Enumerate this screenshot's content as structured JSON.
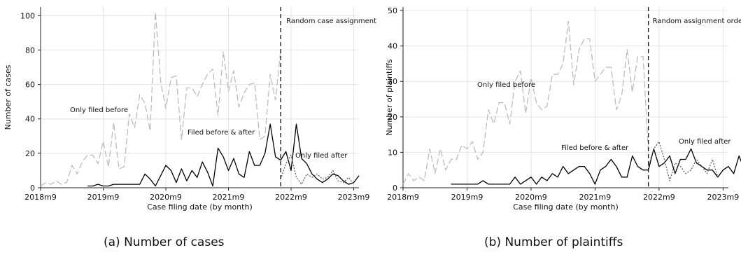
{
  "chart_data": [
    {
      "type": "line",
      "caption": "(a) Number of cases",
      "xlabel": "Case filing date (by month)",
      "ylabel": "Number of cases",
      "x_tick_labels": [
        "2018m9",
        "2019m9",
        "2020m9",
        "2021m9",
        "2022m9",
        "2023m9"
      ],
      "x_tick_months": [
        0,
        12,
        24,
        36,
        48,
        60
      ],
      "xlim": [
        0,
        61
      ],
      "ylim": [
        0,
        105
      ],
      "yticks": [
        0,
        20,
        40,
        60,
        80,
        100
      ],
      "vline": {
        "month": 46,
        "label": "Random case assignment"
      },
      "series": [
        {
          "name": "Only filed before",
          "style": "longdash",
          "color": "#b8b8b8",
          "x_start": 0,
          "values": [
            1,
            3,
            2,
            4,
            2,
            3,
            13,
            8,
            15,
            19,
            19,
            14,
            27,
            12,
            38,
            11,
            12,
            43,
            35,
            54,
            49,
            33,
            102,
            62,
            46,
            64,
            65,
            28,
            58,
            58,
            53,
            60,
            66,
            69,
            42,
            79,
            56,
            68,
            47,
            55,
            60,
            61,
            28,
            30,
            66,
            51,
            80
          ]
        },
        {
          "name": "Filed before & after",
          "style": "solid",
          "color": "#000000",
          "x_start": 9,
          "values": [
            1,
            1,
            2,
            1,
            1,
            2,
            2,
            2,
            2,
            2,
            2,
            8,
            5,
            1,
            7,
            13,
            10,
            3,
            11,
            4,
            10,
            6,
            15,
            9,
            1,
            23,
            18,
            10,
            17,
            8,
            6,
            21,
            13,
            13,
            20,
            37,
            18,
            16,
            21,
            10,
            37,
            17,
            14,
            8,
            5,
            3,
            5,
            8,
            7,
            4,
            2,
            3,
            7
          ]
        },
        {
          "name": "Only filed after",
          "style": "dotted",
          "color": "#555555",
          "x_start": 46,
          "values": [
            5,
            14,
            19,
            6,
            2,
            8,
            6,
            8,
            5,
            6,
            10,
            4,
            3,
            6,
            2
          ]
        }
      ]
    },
    {
      "type": "line",
      "caption": "(b) Number of plaintiffs",
      "xlabel": "Case filing date (by month)",
      "ylabel": "Number of plaintiffs",
      "x_tick_labels": [
        "2018m9",
        "2019m9",
        "2020m9",
        "2021m9",
        "2022m9",
        "2023m9"
      ],
      "x_tick_months": [
        0,
        12,
        24,
        36,
        48,
        60
      ],
      "xlim": [
        0,
        61
      ],
      "ylim": [
        0,
        51
      ],
      "yticks": [
        0,
        10,
        20,
        30,
        40,
        50
      ],
      "vline": {
        "month": 46,
        "label": "Random assignment order"
      },
      "series": [
        {
          "name": "Only filed before",
          "style": "longdash",
          "color": "#b8b8b8",
          "x_start": 0,
          "values": [
            1,
            4,
            2,
            3,
            2,
            11,
            4,
            11,
            5,
            8,
            8,
            12,
            11,
            13,
            8,
            10,
            22,
            18,
            24,
            24,
            18,
            30,
            33,
            21,
            31,
            24,
            22,
            23,
            32,
            32,
            35,
            47,
            29,
            39,
            42,
            42,
            30,
            32,
            34,
            34,
            22,
            26,
            39,
            27,
            37,
            37,
            10
          ]
        },
        {
          "name": "Filed before & after",
          "style": "solid",
          "color": "#000000",
          "x_start": 9,
          "values": [
            1,
            1,
            1,
            1,
            1,
            1,
            2,
            1,
            1,
            1,
            1,
            1,
            3,
            1,
            2,
            3,
            1,
            3,
            2,
            4,
            3,
            6,
            4,
            5,
            6,
            6,
            4,
            1,
            5,
            6,
            8,
            6,
            3,
            3,
            9,
            6,
            5,
            5,
            11,
            6,
            7,
            9,
            4,
            8,
            8,
            11,
            7,
            6,
            5,
            5,
            3,
            5,
            6,
            4,
            9,
            5,
            2,
            4,
            2,
            6
          ]
        },
        {
          "name": "Only filed after",
          "style": "dotted",
          "color": "#555555",
          "x_start": 46,
          "values": [
            6,
            11,
            13,
            8,
            2,
            7,
            6,
            4,
            5,
            8,
            6,
            4,
            8,
            3
          ]
        }
      ]
    }
  ]
}
